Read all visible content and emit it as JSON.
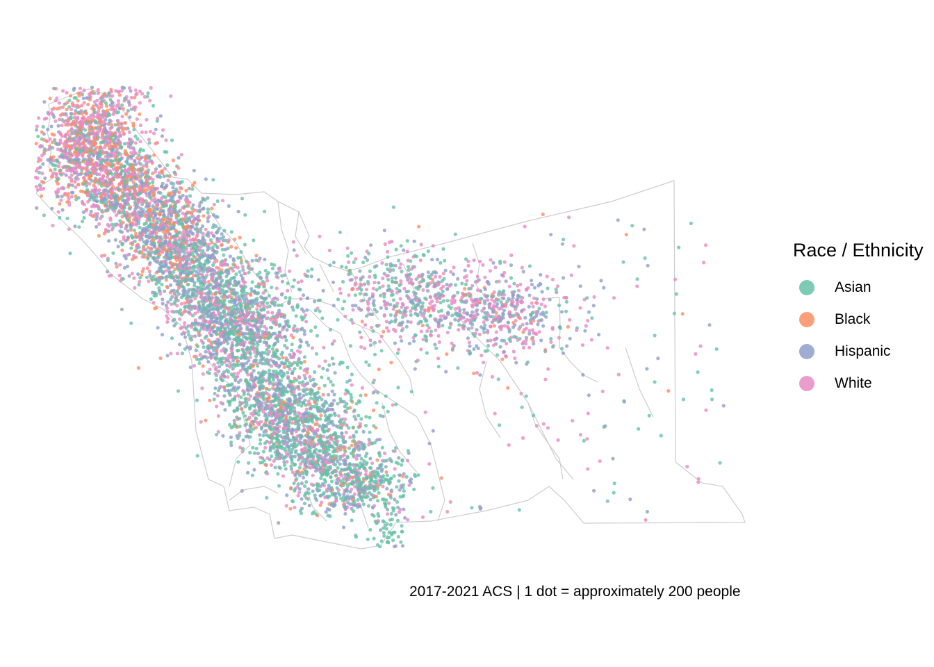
{
  "legend": {
    "title": "Race / Ethnicity",
    "items": [
      {
        "label": "Asian",
        "color": "#66c2a5"
      },
      {
        "label": "Black",
        "color": "#fc8d62"
      },
      {
        "label": "Hispanic",
        "color": "#8da0cb"
      },
      {
        "label": "White",
        "color": "#e78ac3"
      }
    ]
  },
  "caption": "2017-2021 ACS | 1 dot = approximately 200 people",
  "map": {
    "type": "dot-density",
    "boundary_color": "#cccccc",
    "dot_opacity": 0.8
  }
}
